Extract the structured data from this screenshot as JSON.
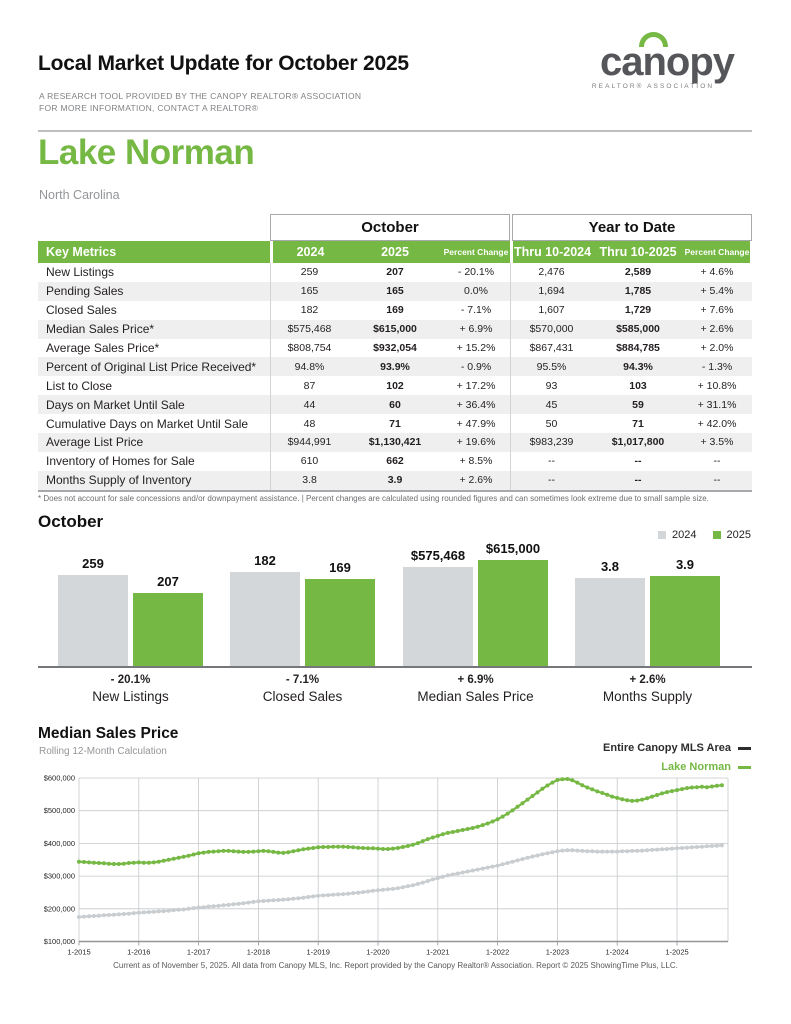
{
  "header": {
    "title": "Local Market Update for October 2025",
    "subtitle_line1": "A RESEARCH TOOL PROVIDED BY THE CANOPY REALTOR® ASSOCIATION",
    "subtitle_line2": "FOR MORE INFORMATION, CONTACT A REALTOR®",
    "logo_word": "canopy",
    "logo_sub": "REALTOR® ASSOCIATION"
  },
  "area": {
    "name": "Lake Norman",
    "state": "North Carolina"
  },
  "table": {
    "group1_header": "October",
    "group2_header": "Year to Date",
    "key_metrics_label": "Key Metrics",
    "columns": [
      "2024",
      "2025",
      "Percent Change",
      "Thru 10-2024",
      "Thru 10-2025",
      "Percent Change"
    ],
    "rows": [
      {
        "label": "New Listings",
        "c": [
          "259",
          "207",
          "- 20.1%",
          "2,476",
          "2,589",
          "+ 4.6%"
        ]
      },
      {
        "label": "Pending Sales",
        "c": [
          "165",
          "165",
          "0.0%",
          "1,694",
          "1,785",
          "+ 5.4%"
        ]
      },
      {
        "label": "Closed Sales",
        "c": [
          "182",
          "169",
          "- 7.1%",
          "1,607",
          "1,729",
          "+ 7.6%"
        ]
      },
      {
        "label": "Median Sales Price*",
        "c": [
          "$575,468",
          "$615,000",
          "+ 6.9%",
          "$570,000",
          "$585,000",
          "+ 2.6%"
        ]
      },
      {
        "label": "Average Sales Price*",
        "c": [
          "$808,754",
          "$932,054",
          "+ 15.2%",
          "$867,431",
          "$884,785",
          "+ 2.0%"
        ]
      },
      {
        "label": "Percent of Original List Price Received*",
        "c": [
          "94.8%",
          "93.9%",
          "- 0.9%",
          "95.5%",
          "94.3%",
          "- 1.3%"
        ]
      },
      {
        "label": "List to Close",
        "c": [
          "87",
          "102",
          "+ 17.2%",
          "93",
          "103",
          "+ 10.8%"
        ]
      },
      {
        "label": "Days on Market Until Sale",
        "c": [
          "44",
          "60",
          "+ 36.4%",
          "45",
          "59",
          "+ 31.1%"
        ]
      },
      {
        "label": "Cumulative Days on Market Until Sale",
        "c": [
          "48",
          "71",
          "+ 47.9%",
          "50",
          "71",
          "+ 42.0%"
        ]
      },
      {
        "label": "Average List Price",
        "c": [
          "$944,991",
          "$1,130,421",
          "+ 19.6%",
          "$983,239",
          "$1,017,800",
          "+ 3.5%"
        ]
      },
      {
        "label": "Inventory of Homes for Sale",
        "c": [
          "610",
          "662",
          "+ 8.5%",
          "--",
          "--",
          "--"
        ]
      },
      {
        "label": "Months Supply of Inventory",
        "c": [
          "3.8",
          "3.9",
          "+ 2.6%",
          "--",
          "--",
          "--"
        ]
      }
    ],
    "footnote": "* Does not account for sale concessions and/or downpayment assistance.  |  Percent changes are calculated using rounded figures and can sometimes look extreme due to small sample size."
  },
  "chart_data": [
    {
      "type": "bar",
      "title": "October",
      "legend": [
        "2024",
        "2025"
      ],
      "categories": [
        "New Listings",
        "Closed Sales",
        "Median Sales Price",
        "Months Supply"
      ],
      "series": [
        {
          "name": "2024",
          "values": [
            259,
            182,
            575468,
            3.8
          ],
          "labels": [
            "259",
            "182",
            "$575,468",
            "3.8"
          ]
        },
        {
          "name": "2025",
          "values": [
            207,
            169,
            615000,
            3.9
          ],
          "labels": [
            "207",
            "169",
            "$615,000",
            "3.9"
          ]
        }
      ],
      "percent_change": [
        "- 20.1%",
        "- 7.1%",
        "+ 6.9%",
        "+ 2.6%"
      ]
    },
    {
      "type": "line",
      "title": "Median Sales Price",
      "subtitle": "Rolling 12-Month Calculation",
      "legend": [
        {
          "name": "Entire Canopy MLS Area",
          "color": "#2d2d2e",
          "line_color": "#c9cdd0"
        },
        {
          "name": "Lake Norman",
          "color": "#75b843",
          "line_color": "#75b843"
        }
      ],
      "ylabels": [
        "$600,000",
        "$500,000",
        "$400,000",
        "$300,000",
        "$200,000",
        "$100,000"
      ],
      "ylim": [
        100000,
        600000
      ],
      "xlabels": [
        "1-2015",
        "1-2016",
        "1-2017",
        "1-2018",
        "1-2019",
        "1-2020",
        "1-2021",
        "1-2022",
        "1-2023",
        "1-2024",
        "1-2025"
      ],
      "x_start": "1-2015",
      "x_end": "10-2025",
      "unit": "USD thousands (monthly rolling 12-month values)",
      "series": [
        {
          "name": "Entire Canopy MLS Area",
          "values_k": [
            175,
            176,
            177,
            178,
            179,
            180,
            181,
            182,
            183,
            184,
            185,
            187,
            188,
            189,
            190,
            191,
            192,
            193,
            194,
            196,
            197,
            198,
            200,
            202,
            204,
            205,
            207,
            208,
            209,
            211,
            212,
            214,
            215,
            217,
            219,
            221,
            223,
            224,
            225,
            226,
            227,
            228,
            229,
            231,
            232,
            234,
            236,
            238,
            240,
            241,
            242,
            243,
            244,
            245,
            246,
            248,
            249,
            251,
            253,
            255,
            257,
            258,
            260,
            261,
            263,
            266,
            269,
            272,
            276,
            280,
            285,
            290,
            294,
            298,
            302,
            305,
            308,
            311,
            314,
            317,
            320,
            323,
            326,
            329,
            332,
            336,
            340,
            344,
            348,
            352,
            356,
            360,
            363,
            367,
            370,
            373,
            376,
            378,
            379,
            379,
            378,
            377,
            376,
            376,
            375,
            375,
            375,
            375,
            375,
            376,
            376,
            377,
            377,
            378,
            379,
            380,
            381,
            382,
            383,
            384,
            385,
            386,
            387,
            388,
            389,
            390,
            391,
            392,
            393,
            394
          ]
        },
        {
          "name": "Lake Norman",
          "values_k": [
            344,
            343,
            342,
            341,
            340,
            339,
            338,
            337,
            337,
            338,
            340,
            341,
            342,
            341,
            341,
            342,
            344,
            347,
            350,
            353,
            356,
            359,
            362,
            366,
            370,
            372,
            374,
            375,
            376,
            377,
            377,
            376,
            375,
            374,
            374,
            375,
            376,
            377,
            376,
            374,
            372,
            371,
            373,
            376,
            379,
            382,
            384,
            386,
            388,
            389,
            389,
            390,
            390,
            390,
            389,
            388,
            387,
            386,
            385,
            385,
            384,
            383,
            383,
            384,
            386,
            389,
            392,
            396,
            401,
            407,
            413,
            418,
            423,
            428,
            432,
            435,
            438,
            441,
            444,
            447,
            451,
            456,
            461,
            467,
            474,
            482,
            491,
            501,
            512,
            523,
            534,
            545,
            556,
            567,
            577,
            586,
            594,
            596,
            597,
            593,
            586,
            578,
            571,
            565,
            559,
            554,
            549,
            543,
            539,
            535,
            532,
            530,
            531,
            534,
            538,
            543,
            548,
            553,
            557,
            560,
            563,
            566,
            569,
            571,
            572,
            573,
            572,
            574,
            576,
            578
          ]
        }
      ]
    }
  ],
  "footer": "Current as of November 5, 2025. All data from Canopy MLS, Inc. Report provided by the Canopy Realtor® Association. Report © 2025 ShowingTime Plus, LLC.",
  "colors": {
    "green": "#75b843",
    "gray_bar": "#d3d7d9",
    "gray_line": "#c9cdd0",
    "table_stripe": "#efefef"
  }
}
